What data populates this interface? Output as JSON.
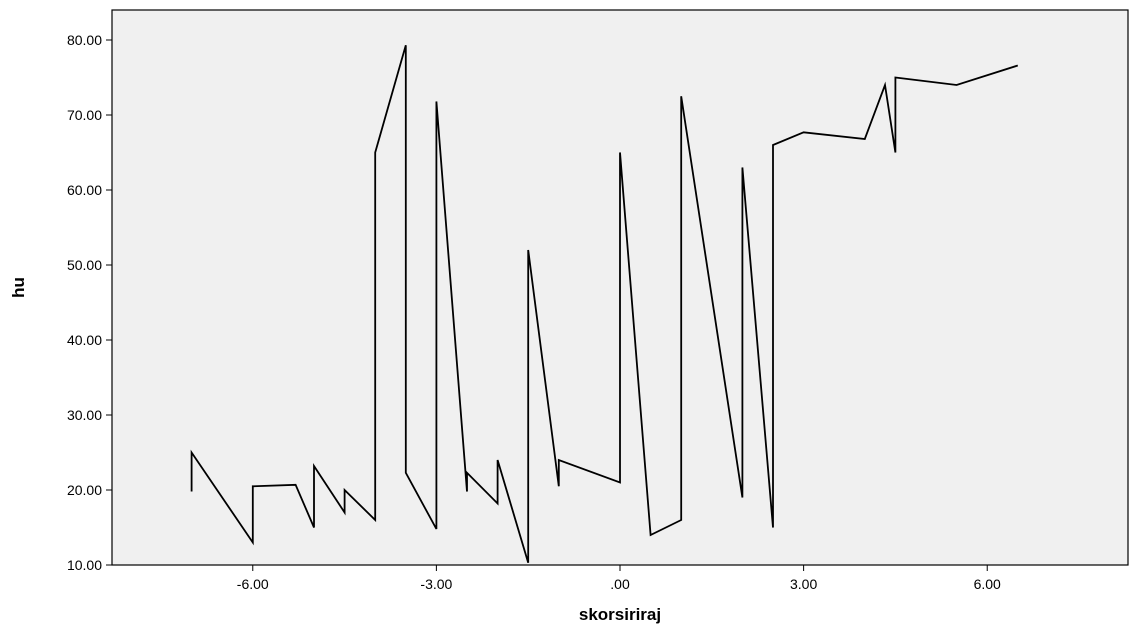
{
  "chart_data": {
    "type": "line",
    "title": "",
    "xlabel": "skorsiriraj",
    "ylabel": "hu",
    "xlim": [
      -8.3,
      8.3
    ],
    "ylim": [
      10,
      84
    ],
    "grid": false,
    "legend": "none",
    "x_ticks": [
      -6,
      -3,
      0,
      3,
      6
    ],
    "x_tick_labels": [
      "-6.00",
      "-3.00",
      ".00",
      "3.00",
      "6.00"
    ],
    "y_ticks": [
      10,
      20,
      30,
      40,
      50,
      60,
      70,
      80
    ],
    "y_tick_labels": [
      "10.00",
      "20.00",
      "30.00",
      "40.00",
      "50.00",
      "60.00",
      "70.00",
      "80.00"
    ],
    "colors": {
      "plot_background": "#f0f0f0",
      "line": "#000000",
      "axis": "#000000"
    },
    "series": [
      {
        "x": [
          -7.0,
          -7.0,
          -6.0,
          -6.0,
          -5.3,
          -5.0,
          -5.0,
          -4.5,
          -4.5,
          -4.0,
          -4.0,
          -3.5,
          -3.5,
          -3.0,
          -3.0,
          -2.5,
          -2.5,
          -2.0,
          -2.0,
          -1.5,
          -1.5,
          -1.0,
          -1.0,
          0.0,
          0.0,
          0.5,
          1.0,
          1.0,
          2.0,
          2.0,
          2.5,
          2.5,
          3.0,
          4.0,
          4.33,
          4.5,
          4.5,
          5.5,
          6.5
        ],
        "y": [
          19.8,
          25.0,
          13.0,
          20.5,
          20.7,
          15.0,
          23.2,
          17.0,
          20.0,
          16.0,
          65.0,
          79.3,
          22.3,
          14.8,
          71.8,
          19.8,
          22.3,
          18.2,
          24.0,
          10.3,
          52.0,
          20.5,
          24.0,
          21.0,
          65.0,
          14.0,
          16.0,
          72.5,
          19.0,
          63.0,
          15.0,
          66.0,
          67.7,
          66.8,
          74.0,
          65.0,
          75.0,
          74.0,
          76.6
        ]
      }
    ]
  }
}
